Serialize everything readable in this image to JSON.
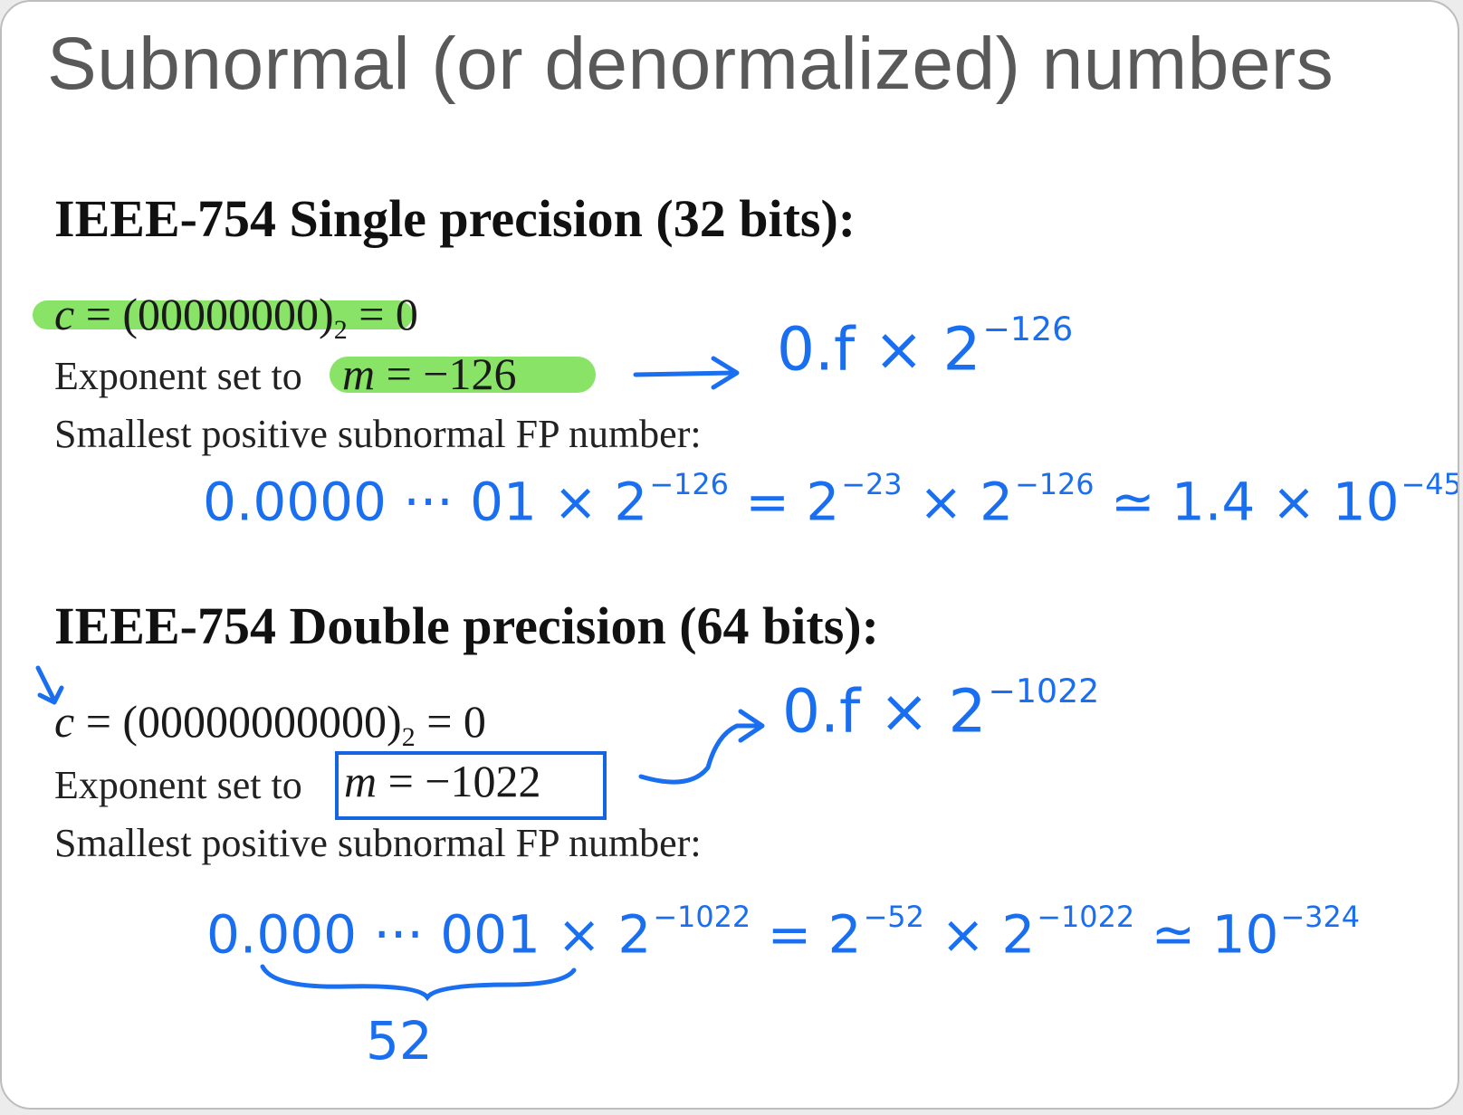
{
  "slide": {
    "title": "Subnormal (or denormalized) numbers",
    "single": {
      "heading": "IEEE-754 Single precision (32 bits):",
      "c_label": "c",
      "c_expr": " = (00000000)",
      "base": "2",
      "c_result": " = 0",
      "exponent_text": "Exponent set to ",
      "m_label": "m",
      "m_expr": " = −126",
      "smallest_text": "Smallest positive subnormal FP number:"
    },
    "double": {
      "heading": "IEEE-754 Double precision (64 bits):",
      "c_label": "c",
      "c_expr": " = (00000000000)",
      "base": "2",
      "c_result": " = 0",
      "exponent_text": "Exponent set to ",
      "m_label": "m",
      "m_expr": " = −1022",
      "smallest_text": "Smallest positive subnormal FP number:"
    }
  },
  "annotations": {
    "single_form": {
      "base": "0.f × 2",
      "exp": "−126"
    },
    "single_smallest": {
      "mantissa": "0.0000 ··· 01 × 2",
      "exp1": "−126",
      "eq": "= 2",
      "exp2": "−23",
      "times": "× 2",
      "exp3": "−126",
      "approx": "≃ 1.4 × 10",
      "exp4": "−45"
    },
    "double_form": {
      "base": "0.f × 2",
      "exp": "−1022"
    },
    "double_smallest": {
      "mantissa": "0.000 ··· 001 × 2",
      "exp1": "−1022",
      "eq": "= 2",
      "exp2": "−52",
      "times": "× 2",
      "exp3": "−1022",
      "approx": "≃ 10",
      "exp4": "−324"
    },
    "brace_count": "52"
  },
  "colors": {
    "ink": "#1a6ef0",
    "highlight": "#7ee15a",
    "title": "#595959"
  }
}
